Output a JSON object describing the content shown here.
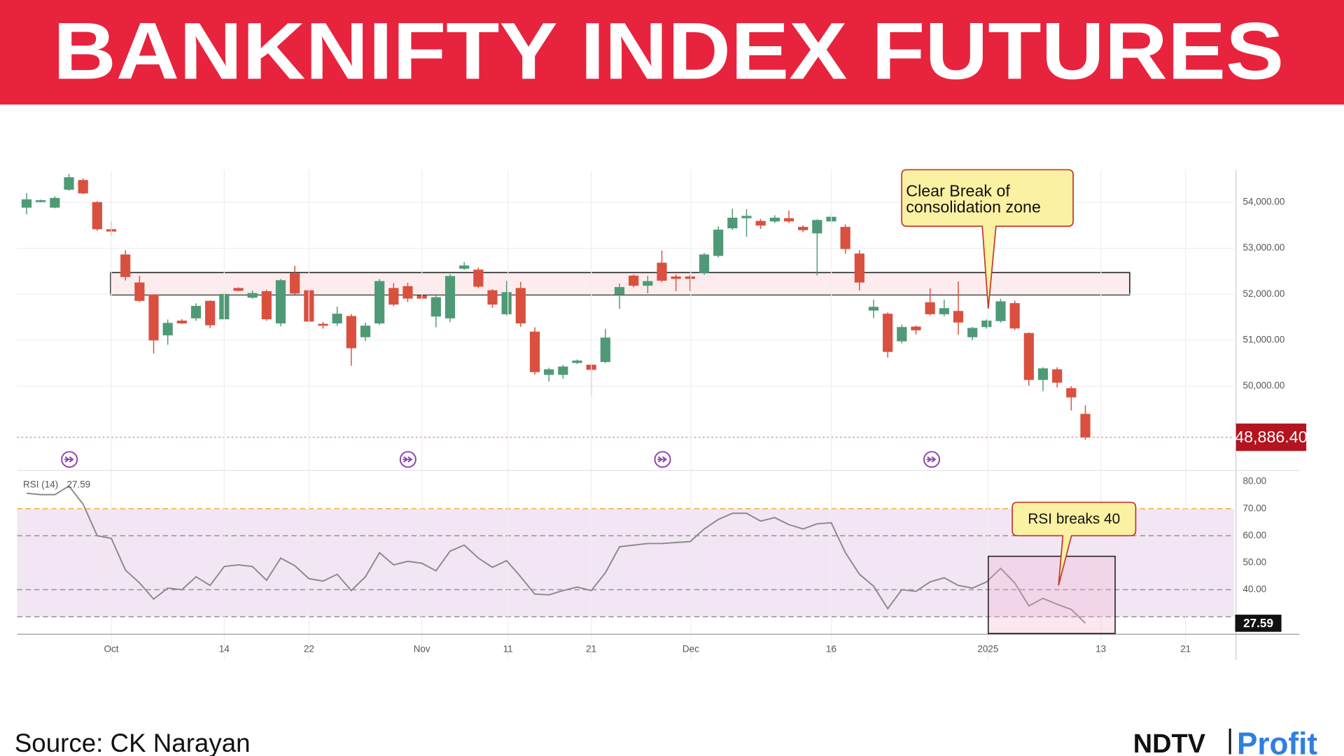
{
  "header": {
    "title": "BANKNIFTY INDEX FUTURES"
  },
  "chart_data": [
    {
      "type": "candlestick",
      "up_color": "#4f9a76",
      "down_color": "#d9503f",
      "grid": true,
      "xlim": [
        -0.67,
        85.55
      ],
      "ylim": [
        48180,
        54710
      ],
      "yticks": [
        {
          "value": 54000,
          "label": "54,000.00"
        },
        {
          "value": 53000,
          "label": "53,000.00"
        },
        {
          "value": 52000,
          "label": "52,000.00"
        },
        {
          "value": 51000,
          "label": "51,000.00"
        },
        {
          "value": 50000,
          "label": "50,000.00"
        }
      ],
      "open": [
        53890,
        54030,
        53890,
        54280,
        54480,
        54000,
        53410,
        52860,
        52250,
        51990,
        51110,
        51420,
        51480,
        51850,
        51460,
        52130,
        51930,
        52060,
        51370,
        52450,
        52080,
        51350,
        51370,
        51520,
        51070,
        51370,
        52130,
        52170,
        51970,
        51520,
        51480,
        52560,
        52530,
        52080,
        51570,
        52130,
        51180,
        50250,
        50250,
        50510,
        50460,
        50530,
        52000,
        52400,
        52190,
        52680,
        52380,
        52380,
        52470,
        52840,
        53440,
        53660,
        53590,
        53590,
        53650,
        53460,
        53330,
        53590,
        53460,
        52880,
        51650,
        51570,
        50980,
        51290,
        51820,
        51570,
        51630,
        51070,
        51290,
        51420,
        51800,
        51150,
        50140,
        50360,
        49950,
        49390
      ],
      "high": [
        54200,
        54060,
        54130,
        54620,
        54520,
        54020,
        53590,
        52960,
        52400,
        52000,
        51450,
        51460,
        51800,
        51870,
        52030,
        52150,
        52080,
        52100,
        52330,
        52620,
        52120,
        51400,
        51730,
        51570,
        51380,
        52330,
        52240,
        52250,
        52000,
        51970,
        52440,
        52700,
        52580,
        52110,
        52290,
        52270,
        51280,
        50400,
        50460,
        50580,
        50500,
        51240,
        52230,
        52430,
        52400,
        52950,
        52430,
        52420,
        52900,
        53480,
        53860,
        53850,
        53640,
        53720,
        53820,
        53500,
        53630,
        53740,
        53520,
        52960,
        51880,
        51600,
        51340,
        51320,
        52130,
        51880,
        52280,
        51290,
        51450,
        51900,
        51860,
        51170,
        50410,
        50410,
        50000,
        49580
      ],
      "low": [
        53740,
        54000,
        53870,
        54250,
        54180,
        53380,
        53270,
        52300,
        51830,
        50710,
        50900,
        51350,
        51420,
        51260,
        51420,
        52060,
        51900,
        51420,
        51300,
        51990,
        51370,
        51250,
        51310,
        50440,
        50980,
        51330,
        51740,
        51830,
        51880,
        51280,
        51390,
        52530,
        52130,
        51700,
        51540,
        51290,
        50250,
        50100,
        50160,
        50480,
        49790,
        50500,
        51680,
        52150,
        52020,
        52260,
        52070,
        52070,
        52420,
        52800,
        53400,
        53250,
        53420,
        53550,
        53550,
        53350,
        52410,
        53550,
        52880,
        52080,
        51480,
        50620,
        50930,
        51120,
        51540,
        51520,
        51120,
        51000,
        51250,
        51380,
        51220,
        50010,
        49890,
        49970,
        49470,
        48830
      ],
      "close": [
        54060,
        54040,
        54090,
        54540,
        54200,
        53420,
        53370,
        52380,
        51860,
        51000,
        51370,
        51370,
        51740,
        51330,
        52000,
        52080,
        52020,
        51460,
        52300,
        52020,
        51410,
        51320,
        51570,
        50830,
        51310,
        52280,
        51780,
        51910,
        51910,
        51930,
        52390,
        52620,
        52170,
        51780,
        52040,
        51370,
        50310,
        50360,
        50420,
        50550,
        50360,
        51050,
        52150,
        52190,
        52280,
        52300,
        52340,
        52340,
        52860,
        53400,
        53660,
        53700,
        53500,
        53660,
        53590,
        53400,
        53610,
        53680,
        52990,
        52260,
        51720,
        50750,
        51280,
        51220,
        51570,
        51690,
        51390,
        51260,
        51420,
        51840,
        51260,
        50140,
        50380,
        50080,
        49760,
        48886.4
      ],
      "last_label": {
        "value": 48886.4,
        "label": "48,886.40"
      },
      "annotation": {
        "lines": [
          "Clear Break of",
          "consolidation zone"
        ]
      }
    },
    {
      "type": "line",
      "xlim": [
        -0.67,
        85.55
      ],
      "ylim": [
        23.5,
        83.8
      ],
      "yticks": [
        {
          "value": 80,
          "label": "80.00"
        },
        {
          "value": 70,
          "label": "70.00"
        },
        {
          "value": 60,
          "label": "60.00"
        },
        {
          "value": 50,
          "label": "50.00"
        },
        {
          "value": 40,
          "label": "40.00"
        }
      ],
      "xticks": [
        {
          "value": 6,
          "label": "Oct"
        },
        {
          "value": 14,
          "label": "14"
        },
        {
          "value": 20,
          "label": "22"
        },
        {
          "value": 28,
          "label": "Nov"
        },
        {
          "value": 34.1,
          "label": "11"
        },
        {
          "value": 40,
          "label": "21"
        },
        {
          "value": 47.05,
          "label": "Dec"
        },
        {
          "value": 57,
          "label": "16"
        },
        {
          "value": 68.1,
          "label": "2025"
        },
        {
          "value": 76.1,
          "label": "13"
        },
        {
          "value": 82.1,
          "label": "21"
        }
      ],
      "band": [
        30,
        70
      ],
      "levels": [
        70,
        60,
        40,
        30
      ],
      "series": [
        {
          "name": "RSI (14)",
          "color": "#8a8a8a",
          "values": [
            75.7,
            75.2,
            75.2,
            78.4,
            71.7,
            60,
            59,
            47.3,
            42.5,
            36.5,
            40.6,
            40,
            44.8,
            41.6,
            48.6,
            49.2,
            48.6,
            43.5,
            51.7,
            48.9,
            44.1,
            43.2,
            45.7,
            39.7,
            44.8,
            53.7,
            49.2,
            50.5,
            49.8,
            47,
            54.3,
            56.5,
            51.7,
            48.3,
            50.8,
            44.8,
            38.4,
            38.1,
            39.7,
            41,
            39.7,
            46.3,
            55.9,
            56.5,
            57.1,
            57.1,
            57.5,
            57.8,
            62.5,
            66,
            68.3,
            68.3,
            65.4,
            66.7,
            64.1,
            62.5,
            64.4,
            64.8,
            53.7,
            45.7,
            41.3,
            33,
            40,
            39.4,
            42.9,
            44.4,
            41.6,
            40.6,
            42.9,
            47.9,
            42.5,
            34,
            36.8,
            34.6,
            32.7,
            27.59
          ]
        }
      ],
      "annotation": {
        "text": "RSI breaks 40"
      }
    }
  ],
  "footer": {
    "source": "Source: CK Narayan",
    "logo": [
      "NDTV",
      "Profit"
    ]
  }
}
